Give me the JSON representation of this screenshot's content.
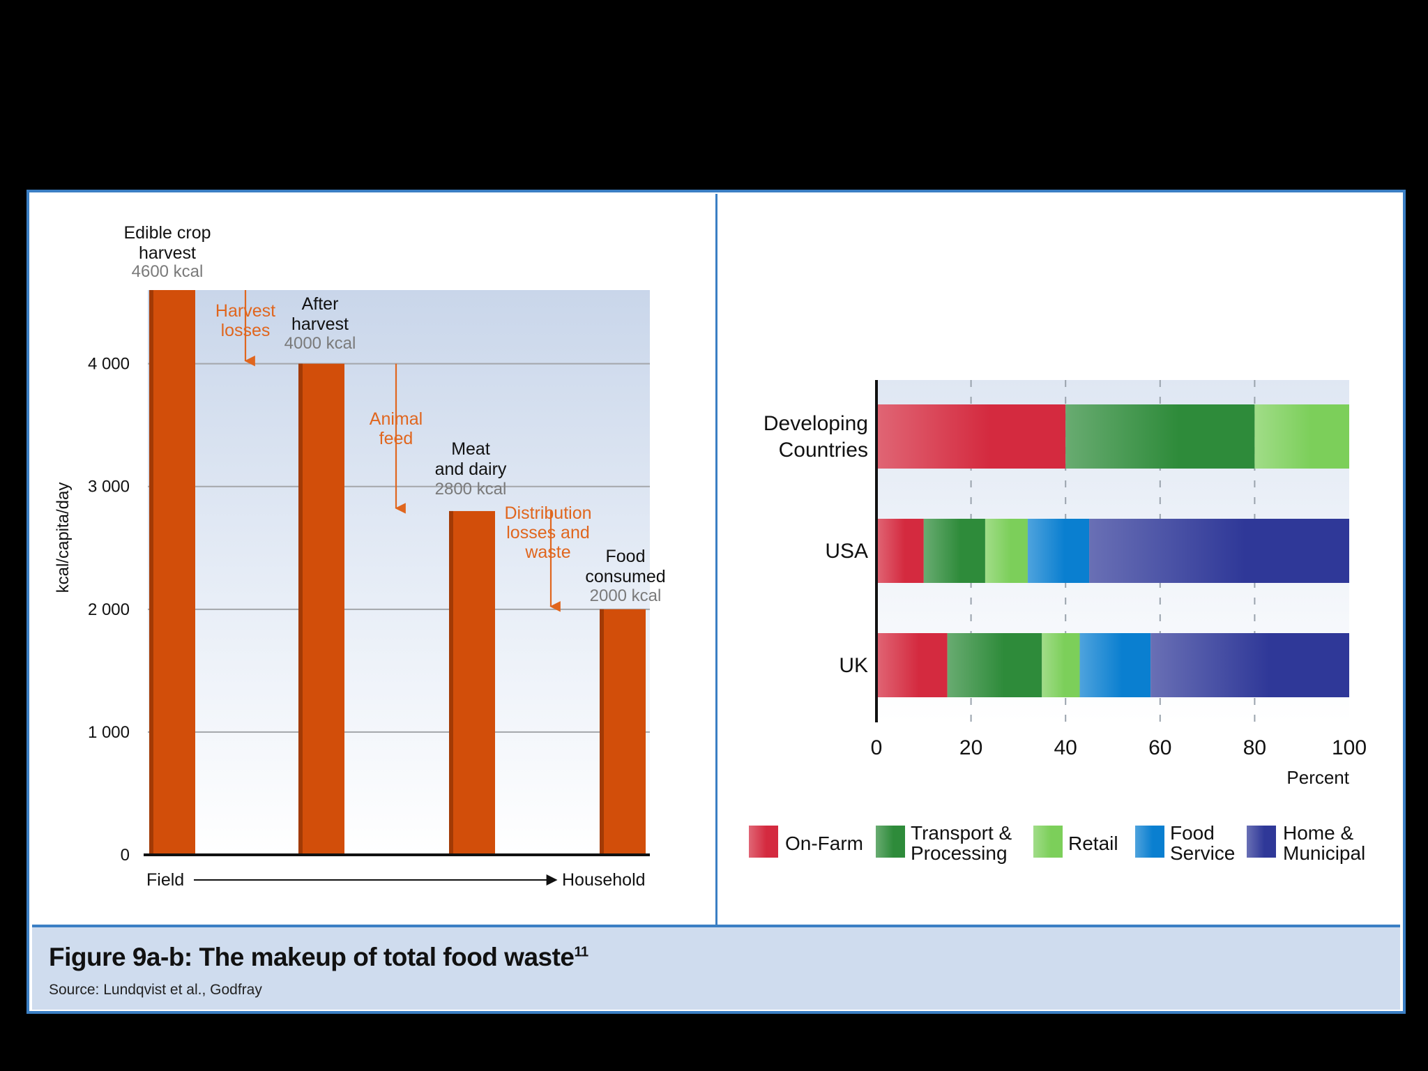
{
  "caption": {
    "title": "Figure 9a-b: The makeup of total food waste",
    "title_sup": "11",
    "source": "Source: Lundqvist et al., Godfray"
  },
  "colors": {
    "bar": "#d24e0a",
    "loss_annotation": "#e0661e",
    "kcal_value": "#7a7a7a",
    "frame": "#3b7fc4",
    "caption_bg": "#cfdcee"
  },
  "chart_data": [
    {
      "type": "bar",
      "title": "",
      "ylabel": "kcal/capita/day",
      "ylim": [
        0,
        4600
      ],
      "yticks": [
        0,
        1000,
        2000,
        3000,
        4000
      ],
      "ytick_labels": [
        "0",
        "1 000",
        "2 000",
        "3 000",
        "4 000"
      ],
      "grid": true,
      "x_axis": {
        "start_label": "Field",
        "end_label": "Household"
      },
      "bars": [
        {
          "name": "edible-crop-harvest",
          "label_lines": [
            "Edible crop",
            "harvest"
          ],
          "value_label": "4600 kcal",
          "value": 4600
        },
        {
          "name": "after-harvest",
          "label_lines": [
            "After",
            "harvest"
          ],
          "value_label": "4000 kcal",
          "value": 4000
        },
        {
          "name": "meat-and-dairy",
          "label_lines": [
            "Meat",
            "and dairy"
          ],
          "value_label": "2800 kcal",
          "value": 2800
        },
        {
          "name": "food-consumed",
          "label_lines": [
            "Food",
            "consumed"
          ],
          "value_label": "2000 kcal",
          "value": 2000
        }
      ],
      "losses": [
        {
          "name": "harvest-losses",
          "label_lines": [
            "Harvest",
            "losses"
          ],
          "from": 4600,
          "to": 4000
        },
        {
          "name": "animal-feed",
          "label_lines": [
            "Animal",
            "feed"
          ],
          "from": 4000,
          "to": 2800
        },
        {
          "name": "distribution-losses",
          "label_lines": [
            "Distribution",
            "losses and",
            "waste"
          ],
          "from": 2800,
          "to": 2000
        }
      ]
    },
    {
      "type": "bar",
      "orientation": "horizontal",
      "stacked": true,
      "title": "",
      "xlabel": "Percent",
      "xlim": [
        0,
        100
      ],
      "xticks": [
        0,
        20,
        40,
        60,
        80,
        100
      ],
      "grid": true,
      "legend_position": "bottom",
      "categories": [
        {
          "name": "developing-countries",
          "label_lines": [
            "Developing",
            "Countries"
          ]
        },
        {
          "name": "usa",
          "label_lines": [
            "USA"
          ]
        },
        {
          "name": "uk",
          "label_lines": [
            "UK"
          ]
        }
      ],
      "series": [
        {
          "name": "On-Farm",
          "legend_lines": [
            "On-Farm"
          ],
          "color": "#d42a3f",
          "values": [
            40,
            10,
            15
          ]
        },
        {
          "name": "Transport & Processing",
          "legend_lines": [
            "Transport &",
            "Processing"
          ],
          "color": "#2e8b3a",
          "values": [
            40,
            13,
            20
          ]
        },
        {
          "name": "Retail",
          "legend_lines": [
            "Retail"
          ],
          "color": "#7ccf5a",
          "values": [
            20,
            9,
            8
          ]
        },
        {
          "name": "Food Service",
          "legend_lines": [
            "Food",
            "Service"
          ],
          "color": "#0a7fd0",
          "values": [
            0,
            13,
            15
          ]
        },
        {
          "name": "Home & Municipal",
          "legend_lines": [
            "Home &",
            "Municipal"
          ],
          "color": "#2f3898",
          "values": [
            0,
            55,
            42
          ]
        }
      ]
    }
  ]
}
